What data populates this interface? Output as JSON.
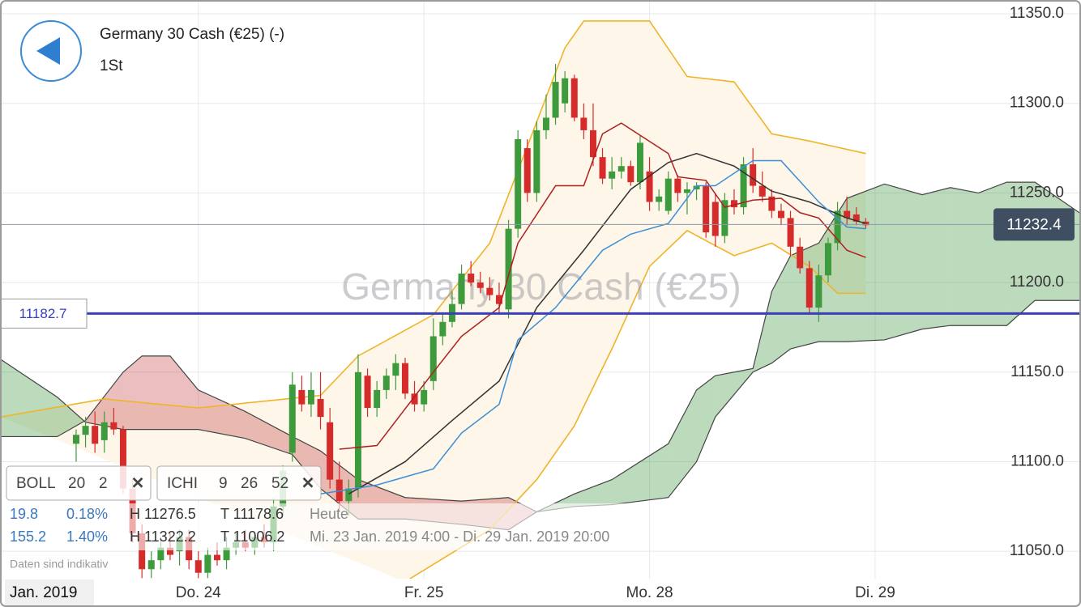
{
  "header": {
    "title": "Germany 30 Cash (€25) (-)",
    "interval": "1St"
  },
  "chart_data": {
    "type": "candlestick",
    "watermark": "Germany 30 Cash (€25)",
    "x": [
      -13,
      -12,
      -11,
      -10,
      -9,
      -8,
      -7,
      -6,
      -5,
      -4,
      -3,
      -2,
      -1,
      0,
      1,
      2,
      3,
      4,
      5,
      6,
      7,
      8,
      9,
      10,
      11,
      12,
      13,
      14,
      15,
      16,
      17,
      18,
      19,
      20,
      21,
      22,
      23,
      24,
      25,
      26,
      27,
      28,
      29,
      30,
      31,
      32,
      33,
      34,
      35,
      36,
      37,
      38,
      39,
      40,
      41,
      42,
      43,
      44,
      45,
      46,
      47,
      48,
      49,
      50,
      51,
      52,
      53,
      54,
      55,
      56,
      57,
      58,
      59,
      60,
      61,
      62,
      63,
      64,
      65,
      66,
      67,
      68,
      69,
      70,
      71
    ],
    "open": [
      11110,
      11115,
      11120,
      11112,
      11122,
      11118,
      11085,
      11060,
      11040,
      11045,
      11052,
      11050,
      11058,
      11045,
      11038,
      11048,
      11045,
      11052,
      11055,
      11052,
      11058,
      11055,
      11075,
      11105,
      11140,
      11132,
      11135,
      11122,
      11090,
      11078,
      11085,
      11148,
      11130,
      11140,
      11148,
      11155,
      11138,
      11132,
      11145,
      11170,
      11178,
      11188,
      11205,
      11200,
      11197,
      11193,
      11185,
      11230,
      11275,
      11250,
      11285,
      11292,
      11300,
      11314,
      11292,
      11285,
      11270,
      11258,
      11262,
      11265,
      11256,
      11262,
      11245,
      11240,
      11258,
      11250,
      11252,
      11254,
      11245,
      11226,
      11246,
      11242,
      11266,
      11254,
      11248,
      11240,
      11236,
      11220,
      11208,
      11186,
      11204,
      11222,
      11240,
      11238,
      11234
    ],
    "high": [
      11118,
      11125,
      11128,
      11128,
      11130,
      11120,
      11090,
      11065,
      11050,
      11058,
      11060,
      11062,
      11062,
      11050,
      11052,
      11055,
      11058,
      11060,
      11062,
      11060,
      11065,
      11080,
      11098,
      11150,
      11148,
      11150,
      11150,
      11130,
      11100,
      11090,
      11160,
      11152,
      11145,
      11152,
      11160,
      11158,
      11145,
      11145,
      11180,
      11182,
      11195,
      11210,
      11212,
      11206,
      11203,
      11200,
      11235,
      11285,
      11280,
      11290,
      11305,
      11322,
      11318,
      11316,
      11300,
      11300,
      11275,
      11270,
      11270,
      11268,
      11282,
      11270,
      11252,
      11262,
      11260,
      11256,
      11256,
      11256,
      11250,
      11250,
      11252,
      11270,
      11275,
      11262,
      11252,
      11244,
      11240,
      11225,
      11212,
      11210,
      11225,
      11245,
      11248,
      11242,
      11236
    ],
    "low": [
      11100,
      11108,
      11105,
      11105,
      11115,
      11082,
      11055,
      11035,
      11035,
      11040,
      11045,
      11042,
      11040,
      11035,
      11035,
      11042,
      11040,
      11048,
      11050,
      11048,
      11052,
      11050,
      11070,
      11100,
      11128,
      11125,
      11118,
      11085,
      11072,
      11070,
      11080,
      11125,
      11125,
      11135,
      11140,
      11135,
      11128,
      11128,
      11140,
      11165,
      11175,
      11185,
      11198,
      11194,
      11190,
      11182,
      11180,
      11225,
      11245,
      11245,
      11280,
      11288,
      11295,
      11290,
      11280,
      11265,
      11255,
      11252,
      11258,
      11254,
      11252,
      11240,
      11240,
      11238,
      11245,
      11238,
      11246,
      11225,
      11220,
      11222,
      11238,
      11238,
      11250,
      11245,
      11236,
      11232,
      11215,
      11205,
      11182,
      11178,
      11200,
      11218,
      11232,
      11232,
      11230
    ],
    "close": [
      11115,
      11120,
      11110,
      11122,
      11118,
      11085,
      11060,
      11040,
      11045,
      11052,
      11048,
      11058,
      11045,
      11038,
      11048,
      11045,
      11052,
      11055,
      11052,
      11058,
      11055,
      11075,
      11095,
      11143,
      11132,
      11140,
      11125,
      11090,
      11078,
      11085,
      11150,
      11130,
      11140,
      11148,
      11155,
      11138,
      11132,
      11140,
      11170,
      11178,
      11188,
      11205,
      11200,
      11197,
      11193,
      11188,
      11230,
      11280,
      11250,
      11285,
      11292,
      11312,
      11314,
      11292,
      11285,
      11270,
      11258,
      11262,
      11265,
      11256,
      11278,
      11245,
      11248,
      11258,
      11250,
      11252,
      11254,
      11228,
      11226,
      11246,
      11242,
      11266,
      11254,
      11248,
      11240,
      11236,
      11220,
      11208,
      11186,
      11204,
      11222,
      11240,
      11236,
      11234,
      11232
    ],
    "up_color": "#3d9b3d",
    "down_color": "#d62b2b",
    "xlim": [
      -21.1,
      93.9
    ],
    "xticks": [
      {
        "value": 0,
        "label": "Do. 24"
      },
      {
        "value": 24,
        "label": "Fr. 25"
      },
      {
        "value": 48,
        "label": "Mo. 28"
      },
      {
        "value": 72,
        "label": "Di. 29"
      }
    ],
    "x_period": "Jan. 2019",
    "ylim": [
      11034.7,
      11357.7
    ],
    "yticks": [
      {
        "value": 11050,
        "label": "11050.0"
      },
      {
        "value": 11100,
        "label": "11100.0"
      },
      {
        "value": 11150,
        "label": "11150.0"
      },
      {
        "value": 11200,
        "label": "11200.0"
      },
      {
        "value": 11250,
        "label": "11250.0"
      },
      {
        "value": 11300,
        "label": "11300.0"
      },
      {
        "value": 11350,
        "label": "11350.0"
      }
    ],
    "grid": true,
    "cloud": {
      "x": [
        -21,
        -15,
        -12,
        -8,
        -6,
        -3,
        0,
        5,
        10,
        13,
        17,
        22,
        28,
        33,
        36,
        40,
        44,
        50,
        53,
        55,
        59,
        61,
        63,
        66,
        69,
        73,
        77,
        80,
        83,
        86,
        89,
        94
      ],
      "span_a": [
        11157,
        11136,
        11122,
        11118,
        11118,
        11118,
        11118,
        11113,
        11104,
        11085,
        11068,
        11068,
        11065,
        11062,
        11072,
        11082,
        11090,
        11110,
        11140,
        11148,
        11152,
        11195,
        11215,
        11222,
        11247,
        11255,
        11249,
        11253,
        11250,
        11256,
        11256,
        11238
      ],
      "span_b": [
        11114,
        11114,
        11123,
        11150,
        11159,
        11159,
        11140,
        11128,
        11114,
        11106,
        11090,
        11080,
        11078,
        11080,
        11072,
        11075,
        11076,
        11080,
        11100,
        11125,
        11150,
        11155,
        11163,
        11167,
        11167,
        11168,
        11174,
        11176,
        11176,
        11176,
        11190,
        11190
      ],
      "up_color": "#2e8b2e",
      "down_color": "#c0393b"
    },
    "bands": {
      "color": "#f0b429",
      "fill": "#fdf6e9",
      "upper": {
        "x": [
          -21,
          -10,
          0,
          13,
          17,
          25,
          31,
          35,
          39,
          41,
          48,
          52,
          57,
          61,
          65,
          71
        ],
        "values": [
          11125,
          11135,
          11130,
          11137,
          11159,
          11182,
          11222,
          11276,
          11331,
          11346,
          11346,
          11315,
          11312,
          11283,
          11279,
          11272
        ]
      },
      "lower": {
        "x": [
          22,
          31,
          36,
          40,
          44,
          48,
          52,
          57,
          61,
          65,
          68,
          71
        ],
        "values": [
          11033,
          11062,
          11090,
          11120,
          11163,
          11209,
          11229,
          11215,
          11222,
          11209,
          11194,
          11194
        ]
      }
    },
    "lines": [
      {
        "color": "#333333",
        "x": [
          16,
          22,
          27,
          32,
          36,
          41,
          46,
          50,
          53,
          57,
          61,
          65,
          69,
          71
        ],
        "values": [
          11082,
          11100,
          11123,
          11145,
          11186,
          11218,
          11252,
          11267,
          11272,
          11265,
          11251,
          11245,
          11236,
          11233
        ]
      },
      {
        "color": "#b01f1f",
        "x": [
          15,
          19,
          25,
          28,
          32,
          34,
          38,
          41,
          43,
          45,
          50,
          51,
          54,
          56,
          59,
          62,
          64,
          66,
          69,
          71
        ],
        "values": [
          11107,
          11109,
          11150,
          11170,
          11186,
          11222,
          11254,
          11254,
          11283,
          11289,
          11272,
          11259,
          11257,
          11242,
          11246,
          11247,
          11239,
          11236,
          11218,
          11214
        ]
      },
      {
        "color": "#3a8fd8",
        "x": [
          13,
          19,
          25,
          28,
          32,
          34,
          38,
          43,
          46,
          50,
          53,
          55,
          59,
          62,
          66,
          69,
          71
        ],
        "values": [
          11082,
          11087,
          11096,
          11116,
          11132,
          11168,
          11186,
          11218,
          11227,
          11233,
          11254,
          11254,
          11268,
          11268,
          11245,
          11231,
          11230
        ]
      }
    ],
    "levels": [
      {
        "value": 11182.7,
        "color": "#3a3fb8"
      },
      {
        "value": 11232.4,
        "color": "#8a9aa8"
      }
    ]
  },
  "indicators": [
    {
      "name": "BOLL",
      "params": [
        20,
        2
      ],
      "close": "✕"
    },
    {
      "name": "ICHI",
      "params": [
        9,
        26,
        52
      ],
      "close": "✕"
    }
  ],
  "info": [
    [
      "19.8",
      "0.18%",
      "H 11276.5",
      "T 11178.6",
      "Heute"
    ],
    [
      "155.2",
      "1.40%",
      "H 11322.2",
      "T 11006.2",
      "Mi. 23 Jan. 2019 4:00 - Di. 29 Jan. 2019 20:00"
    ]
  ],
  "note": "Daten sind indikativ"
}
